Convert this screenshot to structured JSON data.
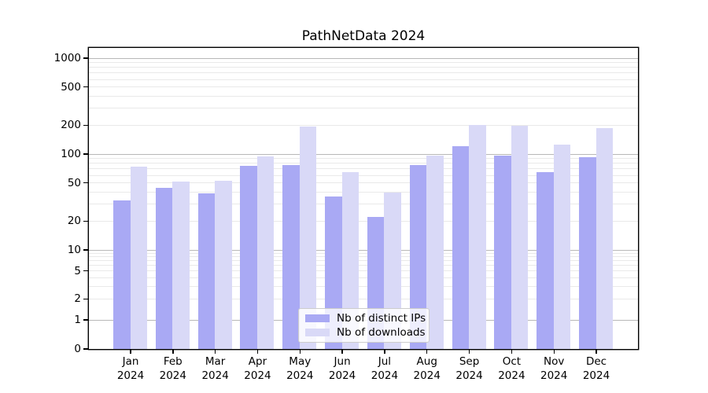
{
  "chart_data": {
    "type": "bar",
    "title": "PathNetData 2024",
    "year_label": "2024",
    "categories": [
      "Jan",
      "Feb",
      "Mar",
      "Apr",
      "May",
      "Jun",
      "Jul",
      "Aug",
      "Sep",
      "Oct",
      "Nov",
      "Dec"
    ],
    "series": [
      {
        "name": "Nb of distinct IPs",
        "color": "#a9a9f4",
        "values": [
          33,
          44,
          39,
          76,
          77,
          36,
          22,
          77,
          121,
          97,
          65,
          93
        ]
      },
      {
        "name": "Nb of downloads",
        "color": "#d9d9f7",
        "values": [
          74,
          52,
          53,
          94,
          194,
          65,
          40,
          96,
          200,
          197,
          126,
          186
        ]
      }
    ],
    "y_axis": {
      "scale": "symlog",
      "tick_values": [
        0,
        1,
        2,
        5,
        10,
        20,
        50,
        100,
        200,
        500,
        1000
      ],
      "tick_labels": [
        "0",
        "1",
        "2",
        "5",
        "10",
        "20",
        "50",
        "100",
        "200",
        "500",
        "1000"
      ],
      "major_gridlines": [
        1,
        10,
        100,
        1000
      ],
      "minor_gridlines": [
        2,
        3,
        4,
        5,
        6,
        7,
        8,
        9,
        20,
        30,
        40,
        50,
        60,
        70,
        80,
        90,
        200,
        300,
        400,
        500,
        600,
        700,
        800,
        900
      ],
      "grid": true
    },
    "legend": {
      "position": "lower center"
    },
    "colors": {
      "major_grid": "#b8b8b8",
      "minor_grid": "#e9e9e9",
      "spine": "#000000",
      "background": "#ffffff"
    }
  }
}
